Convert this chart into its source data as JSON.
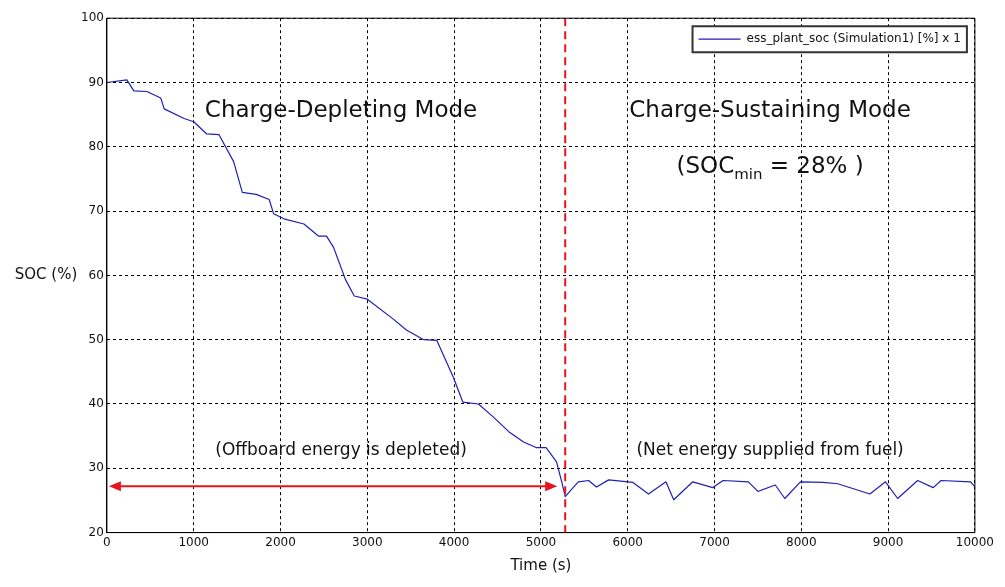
{
  "chart_data": {
    "type": "line",
    "xlabel": "Time (s)",
    "ylabel": "SOC (%)",
    "x": [
      0,
      230,
      310,
      460,
      620,
      660,
      890,
      1000,
      1150,
      1290,
      1460,
      1560,
      1720,
      1870,
      1920,
      2040,
      2270,
      2440,
      2530,
      2610,
      2750,
      2850,
      3000,
      3300,
      3450,
      3650,
      3800,
      3990,
      4100,
      4280,
      4450,
      4630,
      4800,
      4950,
      5060,
      5180,
      5240,
      5280,
      5430,
      5550,
      5640,
      5780,
      6060,
      6240,
      6440,
      6530,
      6750,
      6980,
      7100,
      7390,
      7500,
      7700,
      7810,
      7990,
      8250,
      8420,
      8790,
      8970,
      9110,
      9340,
      9520,
      9610,
      9950,
      10000
    ],
    "series": [
      {
        "name": "ess_plant_soc (Simulation1) [%] x 1",
        "color": "#1f1fb4",
        "values": [
          90,
          90.4,
          88.7,
          88.6,
          87.6,
          85.9,
          84.4,
          83.9,
          82,
          81.9,
          77.7,
          72.9,
          72.6,
          71.8,
          69.6,
          68.8,
          68,
          66.1,
          66.1,
          64.4,
          59.3,
          56.8,
          56.3,
          53.2,
          51.5,
          50,
          49.9,
          44.2,
          40.3,
          40,
          38,
          35.7,
          34.1,
          33.2,
          33.2,
          31,
          27.9,
          25.6,
          27.9,
          28.1,
          27.1,
          28.2,
          27.8,
          26,
          27.9,
          25.1,
          27.9,
          27,
          28.1,
          27.9,
          26.4,
          27.4,
          25.3,
          27.9,
          27.8,
          27.6,
          26,
          27.9,
          25.3,
          28.1,
          27,
          28.1,
          27.9,
          27.1
        ]
      }
    ],
    "xlim": [
      0,
      10000
    ],
    "xticks": [
      0,
      1000,
      2000,
      3000,
      4000,
      5000,
      6000,
      7000,
      8000,
      9000,
      10000
    ],
    "ylim": [
      20,
      100
    ],
    "yticks": [
      20,
      30,
      40,
      50,
      60,
      70,
      80,
      90,
      100
    ],
    "grid": true,
    "legend": "top right",
    "marker": "none",
    "line_style": "solid",
    "ref_lines": [
      {
        "axis": "x",
        "value": 5280,
        "label": null,
        "color": "#e8141c",
        "line_style": "dashed"
      }
    ],
    "annotations": [
      "Charge-Depleting Mode",
      "Charge-Sustaining Mode",
      "(SOC$_{min}$ = 28% )",
      "(Offboard energy is depleted)",
      "(Net energy supplied from fuel)"
    ]
  }
}
